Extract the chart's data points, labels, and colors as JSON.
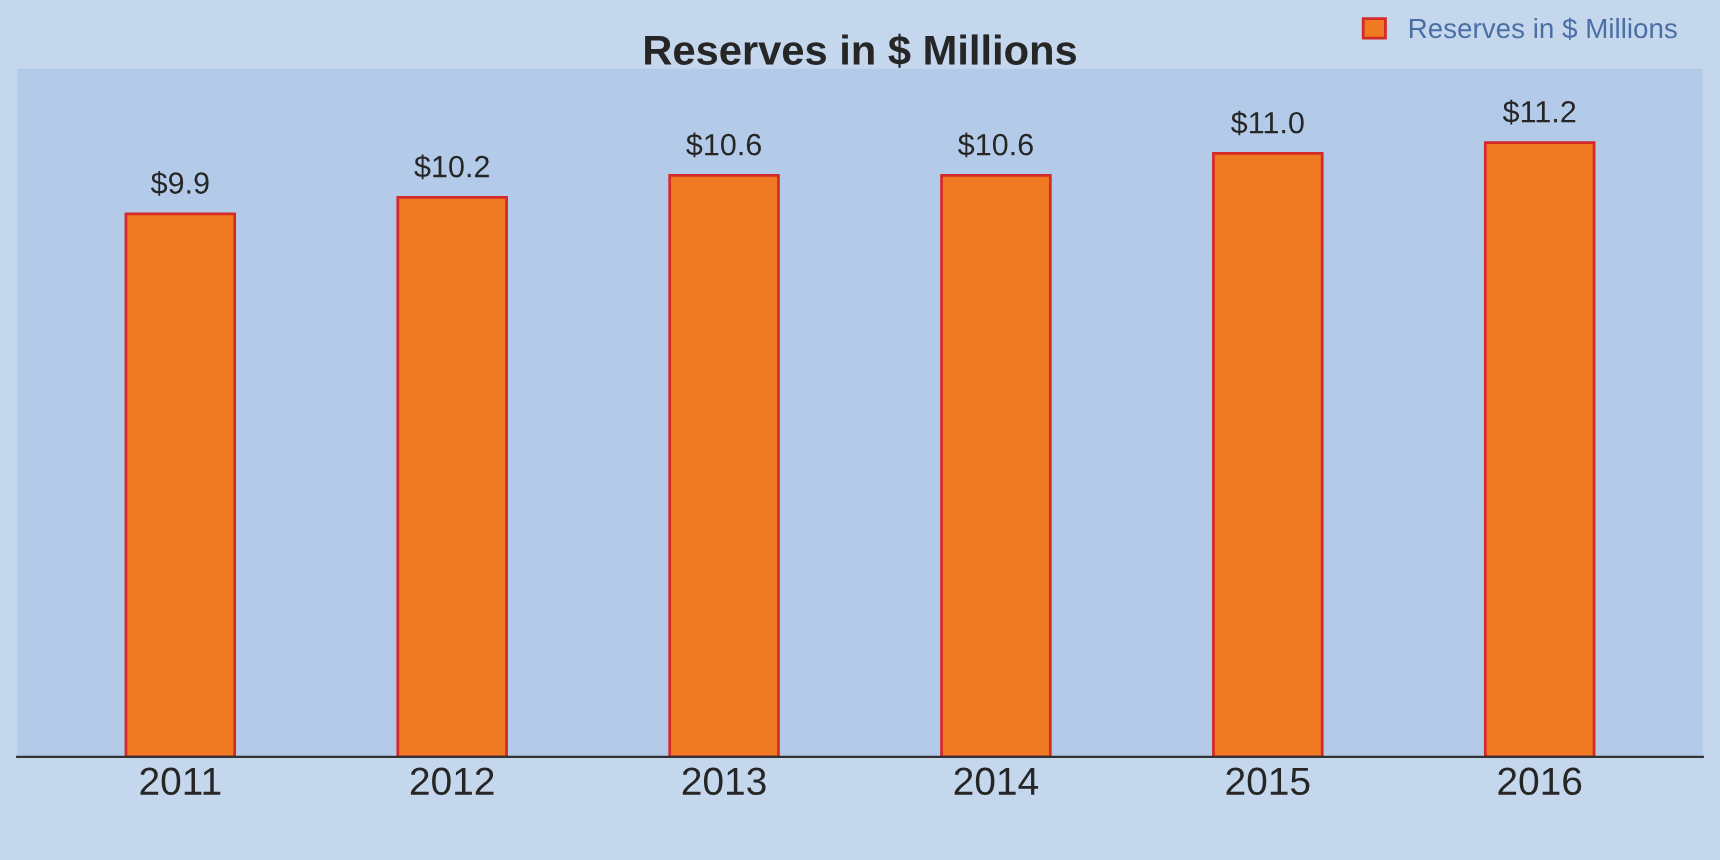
{
  "chart_data": {
    "type": "bar",
    "title": "Reserves in $ Millions",
    "categories": [
      "2011",
      "2012",
      "2013",
      "2014",
      "2015",
      "2016"
    ],
    "series": [
      {
        "name": "Reserves in $ Millions",
        "color": "#f07a22",
        "values": [
          9.9,
          10.2,
          10.6,
          10.6,
          11.0,
          11.2
        ],
        "value_labels": [
          "$9.9",
          "$10.2",
          "$10.6",
          "$10.6",
          "$11.0",
          "$11.2"
        ]
      }
    ],
    "tick_labels": "x",
    "grid": false,
    "legend": "top right"
  }
}
